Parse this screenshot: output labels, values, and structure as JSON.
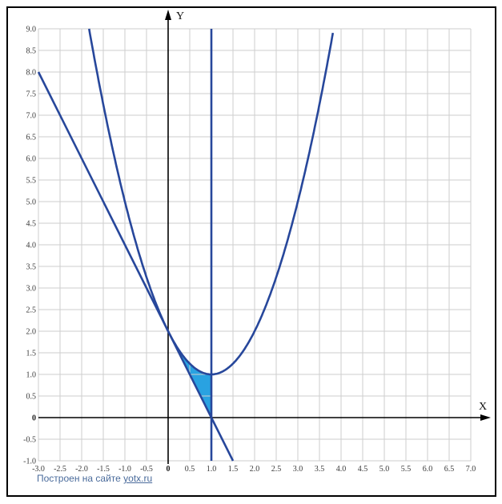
{
  "footer": {
    "prefix": "Построен на сайте ",
    "link_text": "yotx.ru",
    "color": "#4a6b9b"
  },
  "colors": {
    "curve": "#27479b",
    "fill": "#29a2e1",
    "grid": "#cdcdcd",
    "axis": "#000000",
    "tick_text": "#3a3a3a",
    "page_border": "#000000",
    "background": "#ffffff"
  },
  "chart_data": {
    "type": "line",
    "title": "",
    "xlabel": "X",
    "ylabel": "Y",
    "xlim": [
      -3.0,
      7.0
    ],
    "ylim": [
      -1.0,
      9.0
    ],
    "grid": true,
    "grid_step": 0.5,
    "x_tick_labels": [
      "-3.0",
      "-2.5",
      "-2.0",
      "-1.5",
      "-1.0",
      "-0.5",
      "0",
      "0.5",
      "1.0",
      "1.5",
      "2.0",
      "2.5",
      "3.0",
      "3.5",
      "4.0",
      "4.5",
      "5.0",
      "5.5",
      "6.0",
      "6.5",
      "7.0"
    ],
    "y_tick_labels": [
      "9.0",
      "8.5",
      "8.0",
      "7.5",
      "7.0",
      "6.5",
      "6.0",
      "5.5",
      "5.0",
      "4.5",
      "4.0",
      "3.5",
      "3.0",
      "2.5",
      "2.0",
      "1.5",
      "1.0",
      "0.5",
      "0",
      "-0.5",
      "-1.0"
    ],
    "series": [
      {
        "name": "parabola y = x^2 - 2x + 2",
        "kind": "parabola",
        "coeffs": {
          "a": 1,
          "b": -2,
          "c": 2
        },
        "domain": [
          -1.8284,
          3.8284
        ],
        "color": "#27479b",
        "key_points": [
          [
            0,
            2
          ],
          [
            1,
            1
          ]
        ]
      },
      {
        "name": "line y = 2 - 2x",
        "kind": "segment",
        "from": [
          -3,
          8
        ],
        "to": [
          1.5,
          -1
        ],
        "color": "#27479b",
        "key_points": [
          [
            0,
            2
          ],
          [
            1,
            0
          ]
        ]
      },
      {
        "name": "vertical line x = 1",
        "kind": "vertical",
        "x": 1,
        "color": "#27479b"
      }
    ],
    "shaded_region": {
      "color": "#29a2e1",
      "x_from": 0,
      "x_to": 1,
      "bounded_by": [
        "y = x^2 - 2x + 2 (above)",
        "y = 2 - 2x (below-left)",
        "x = 1 (right)"
      ],
      "vertices": [
        [
          0,
          2
        ],
        [
          1,
          0
        ],
        [
          1,
          1
        ]
      ]
    }
  }
}
